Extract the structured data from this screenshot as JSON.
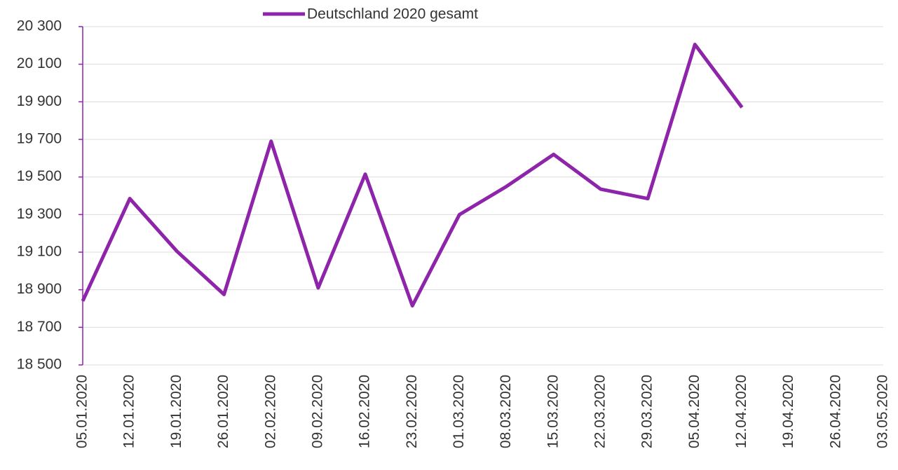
{
  "chart_data": {
    "type": "line",
    "categories": [
      "05.01.2020",
      "12.01.2020",
      "19.01.2020",
      "26.01.2020",
      "02.02.2020",
      "09.02.2020",
      "16.02.2020",
      "23.02.2020",
      "01.03.2020",
      "08.03.2020",
      "15.03.2020",
      "22.03.2020",
      "29.03.2020",
      "05.04.2020",
      "12.04.2020",
      "19.04.2020",
      "26.04.2020",
      "03.05.2020"
    ],
    "series": [
      {
        "name": "Deutschland 2020 gesamt",
        "color": "#8e24aa",
        "values": [
          18840,
          19385,
          19105,
          18875,
          19690,
          18910,
          19515,
          18815,
          19300,
          19450,
          19620,
          19435,
          19385,
          20205,
          19870,
          null,
          null,
          null
        ]
      }
    ],
    "ylim": [
      18500,
      20300
    ],
    "yticks": [
      {
        "value": 18500,
        "label": "18 500"
      },
      {
        "value": 18700,
        "label": "18 700"
      },
      {
        "value": 18900,
        "label": "18 900"
      },
      {
        "value": 19100,
        "label": "19 100"
      },
      {
        "value": 19300,
        "label": "19 300"
      },
      {
        "value": 19500,
        "label": "19 500"
      },
      {
        "value": 19700,
        "label": "19 700"
      },
      {
        "value": 19900,
        "label": "19 900"
      },
      {
        "value": 20100,
        "label": "20 100"
      },
      {
        "value": 20300,
        "label": "20 300"
      }
    ],
    "grid": true,
    "legend": "top"
  }
}
